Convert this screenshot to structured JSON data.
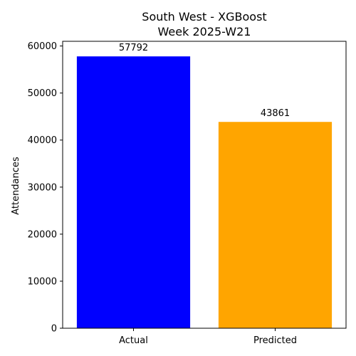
{
  "chart_data": {
    "type": "bar",
    "title": "South West - XGBoost",
    "subtitle": "Week 2025-W21",
    "xlabel": "",
    "ylabel": "Attendances",
    "categories": [
      "Actual",
      "Predicted"
    ],
    "values": [
      57792,
      43861
    ],
    "data_labels": [
      "57792",
      "43861"
    ],
    "colors": [
      "#0000ff",
      "#ffa500"
    ],
    "ylim": [
      0,
      61000
    ],
    "yticks": [
      0,
      10000,
      20000,
      30000,
      40000,
      50000,
      60000
    ],
    "ytick_labels": [
      "0",
      "10000",
      "20000",
      "30000",
      "40000",
      "50000",
      "60000"
    ],
    "grid": false,
    "legend": "none"
  }
}
